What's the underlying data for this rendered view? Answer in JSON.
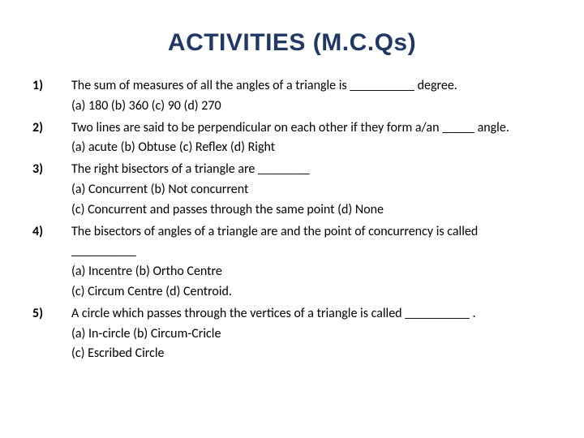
{
  "title": "ACTIVITIES (M.C.Qs)",
  "title_color": "#203864",
  "title_fontsize": 30,
  "body_fontsize": 16,
  "background_color": "#ffffff",
  "questions": [
    {
      "num": "1)",
      "lines": [
        "The sum of measures of all the angles of a triangle is __________ degree.",
        "(a)  180   (b)  360   (c)  90     (d)   270"
      ]
    },
    {
      "num": "2)",
      "lines": [
        "Two lines are said to be perpendicular on each other if they form a/an _____ angle.",
        "(a)  acute   (b)  Obtuse     (c)  Reflex  (d)   Right"
      ]
    },
    {
      "num": "3)",
      "lines": [
        "The right bisectors of a triangle are ________",
        "(a)  Concurrent   (b)  Not concurrent",
        "(c)  Concurrent and passes through the same point    (d)  None"
      ]
    },
    {
      "num": "4)",
      "lines": [
        "The bisectors of angles of a triangle are and the point of concurrency is called",
        "__________",
        "(a)  Incentre   (b)  Ortho Centre",
        "(c)  Circum Centre  (d)  Centroid."
      ]
    },
    {
      "num": "5)",
      "lines": [
        "A circle which passes through the vertices of a triangle is called __________ .",
        "(a)  In-circle   (b)  Circum-Cricle",
        "(c)  Escribed Circle"
      ]
    }
  ]
}
